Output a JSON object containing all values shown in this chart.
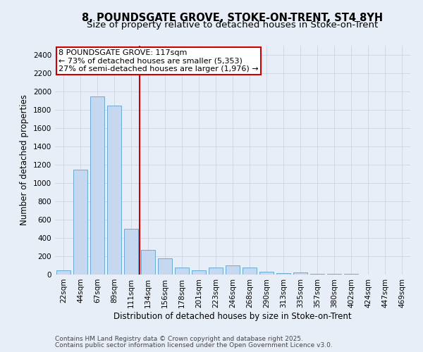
{
  "title1": "8, POUNDSGATE GROVE, STOKE-ON-TRENT, ST4 8YH",
  "title2": "Size of property relative to detached houses in Stoke-on-Trent",
  "xlabel": "Distribution of detached houses by size in Stoke-on-Trent",
  "ylabel": "Number of detached properties",
  "categories": [
    "22sqm",
    "44sqm",
    "67sqm",
    "89sqm",
    "111sqm",
    "134sqm",
    "156sqm",
    "178sqm",
    "201sqm",
    "223sqm",
    "246sqm",
    "268sqm",
    "290sqm",
    "313sqm",
    "335sqm",
    "357sqm",
    "380sqm",
    "402sqm",
    "424sqm",
    "447sqm",
    "469sqm"
  ],
  "values": [
    50,
    1150,
    1950,
    1850,
    500,
    270,
    175,
    75,
    50,
    75,
    100,
    75,
    30,
    15,
    20,
    5,
    5,
    5,
    3,
    3,
    2
  ],
  "bar_color": "#c5d8f0",
  "bar_edge_color": "#6aaad4",
  "grid_color": "#d0d8e8",
  "background_color": "#e8eef8",
  "vline_x": 4.5,
  "vline_color": "#cc0000",
  "annotation_line1": "8 POUNDSGATE GROVE: 117sqm",
  "annotation_line2": "← 73% of detached houses are smaller (5,353)",
  "annotation_line3": "27% of semi-detached houses are larger (1,976) →",
  "annotation_box_color": "#ffffff",
  "annotation_box_edge": "#cc0000",
  "ylim": [
    0,
    2500
  ],
  "yticks": [
    0,
    200,
    400,
    600,
    800,
    1000,
    1200,
    1400,
    1600,
    1800,
    2000,
    2200,
    2400
  ],
  "footer1": "Contains HM Land Registry data © Crown copyright and database right 2025.",
  "footer2": "Contains public sector information licensed under the Open Government Licence v3.0.",
  "title1_fontsize": 10.5,
  "title2_fontsize": 9.5,
  "xlabel_fontsize": 8.5,
  "ylabel_fontsize": 8.5,
  "tick_fontsize": 7.5,
  "annotation_fontsize": 8,
  "footer_fontsize": 6.5
}
